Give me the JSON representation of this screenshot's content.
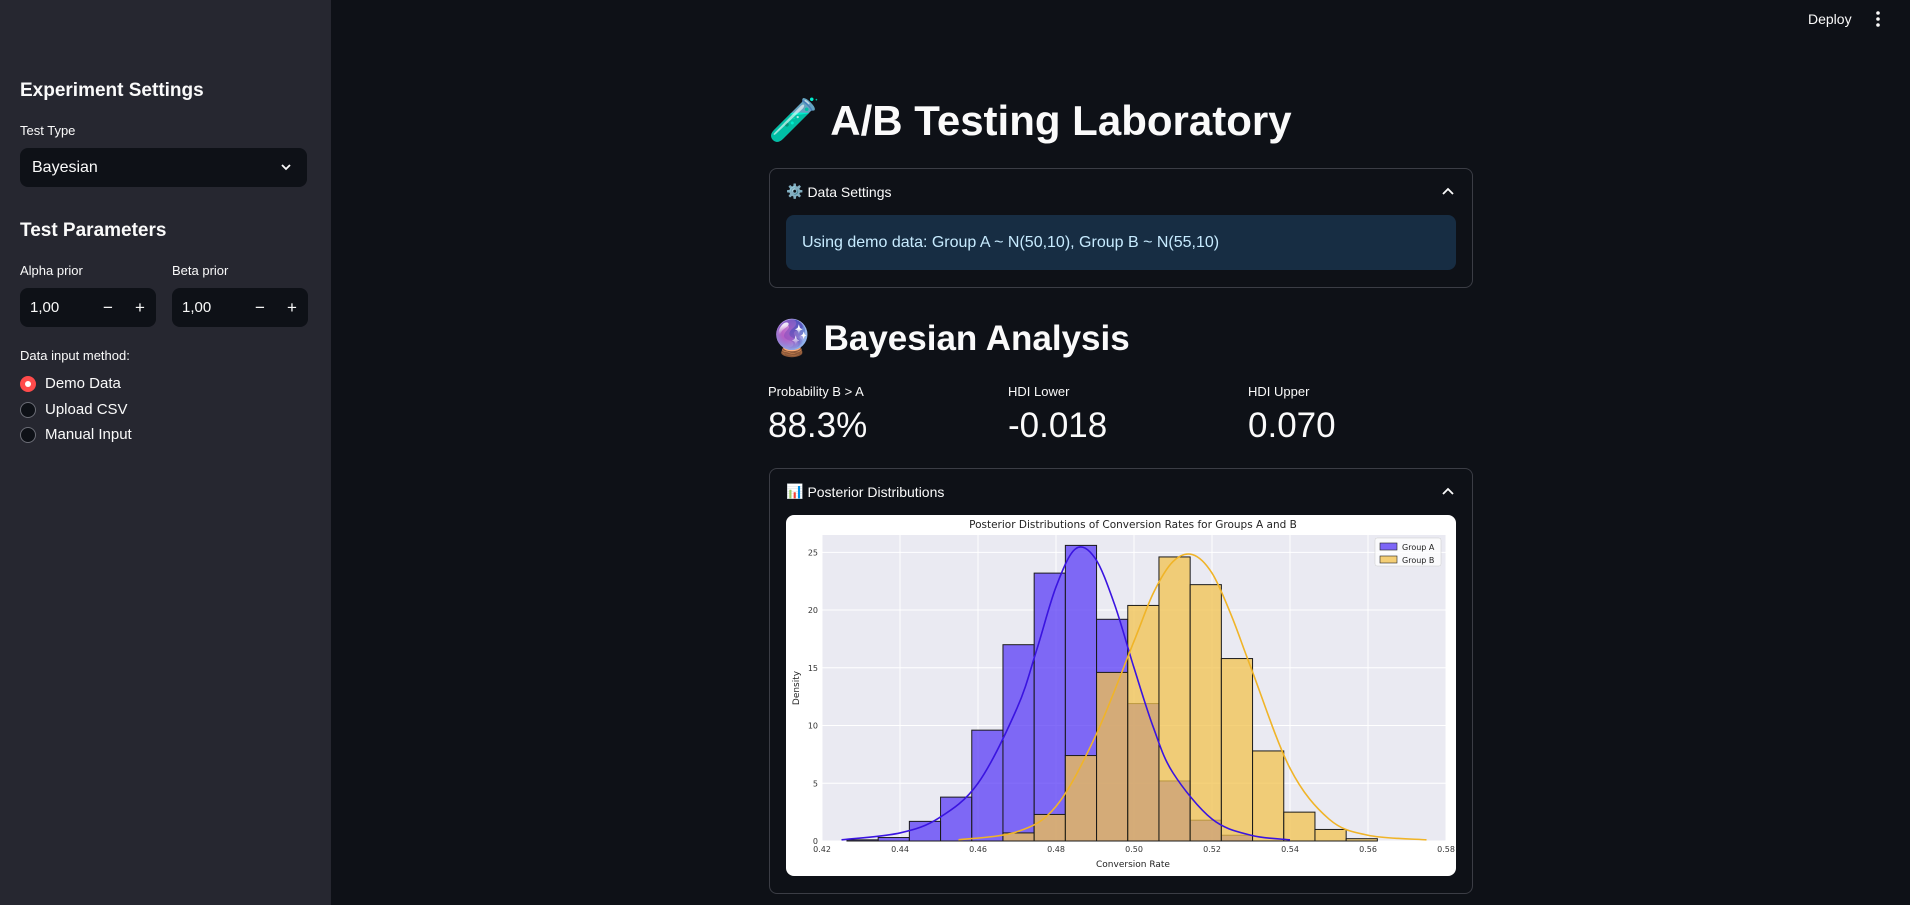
{
  "header": {
    "deploy_label": "Deploy"
  },
  "sidebar": {
    "experiment_title": "Experiment Settings",
    "test_type_label": "Test Type",
    "test_type_value": "Bayesian",
    "parameters_title": "Test Parameters",
    "alpha_label": "Alpha prior",
    "alpha_value": "1,00",
    "beta_label": "Beta prior",
    "beta_value": "1,00",
    "input_method_label": "Data input method:",
    "input_methods": [
      {
        "label": "Demo Data",
        "selected": true
      },
      {
        "label": "Upload CSV",
        "selected": false
      },
      {
        "label": "Manual Input",
        "selected": false
      }
    ]
  },
  "main": {
    "title_icon": "🧪",
    "title": "A/B Testing Laboratory",
    "data_settings": {
      "icon": "⚙️",
      "title": "Data Settings",
      "info": "Using demo data: Group A ~ N(50,10), Group B ~ N(55,10)"
    },
    "analysis_icon": "🔮",
    "analysis_title": "Bayesian Analysis",
    "metrics": [
      {
        "label": "Probability B > A",
        "value": "88.3%"
      },
      {
        "label": "HDI Lower",
        "value": "-0.018"
      },
      {
        "label": "HDI Upper",
        "value": "0.070"
      }
    ],
    "posterior": {
      "icon": "📊",
      "title": "Posterior Distributions"
    }
  },
  "colors": {
    "accent": "#ff4b4b",
    "group_a": "#5a3cf5",
    "group_b": "#f2c24e",
    "info_bg": "#172d43"
  },
  "chart_data": {
    "type": "bar",
    "title": "Posterior Distributions of Conversion Rates for Groups A and B",
    "xlabel": "Conversion Rate",
    "ylabel": "Density",
    "xlim": [
      0.42,
      0.58
    ],
    "ylim": [
      0,
      26.5
    ],
    "xticks": [
      "0.42",
      "0.44",
      "0.46",
      "0.48",
      "0.50",
      "0.52",
      "0.54",
      "0.56",
      "0.58"
    ],
    "yticks": [
      "0",
      "5",
      "10",
      "15",
      "20",
      "25"
    ],
    "grid": true,
    "legend_position": "top-right",
    "bin_width": 0.008,
    "series": [
      {
        "name": "Group A",
        "bins_start": 0.4264,
        "values": [
          0.1,
          0.3,
          1.7,
          3.8,
          9.6,
          17.0,
          23.2,
          25.6,
          19.2,
          11.9,
          5.2,
          1.8,
          0.5
        ],
        "kde_x": [
          0.425,
          0.44,
          0.45,
          0.46,
          0.47,
          0.475,
          0.48,
          0.485,
          0.49,
          0.495,
          0.5,
          0.505,
          0.51,
          0.52,
          0.53,
          0.54
        ],
        "kde_y": [
          0.1,
          0.7,
          2.0,
          5.0,
          11.5,
          16.5,
          22.0,
          25.3,
          24.5,
          20.5,
          15.0,
          9.8,
          5.9,
          1.9,
          0.5,
          0.1
        ]
      },
      {
        "name": "Group B",
        "bins_start": 0.4664,
        "values": [
          0.7,
          2.3,
          7.4,
          14.6,
          20.4,
          24.6,
          22.2,
          15.8,
          7.8,
          2.5,
          1.0,
          0.2
        ],
        "kde_x": [
          0.455,
          0.47,
          0.48,
          0.49,
          0.5,
          0.505,
          0.51,
          0.515,
          0.52,
          0.525,
          0.53,
          0.54,
          0.55,
          0.56,
          0.575
        ],
        "kde_y": [
          0.1,
          0.8,
          3.0,
          9.0,
          17.3,
          21.5,
          24.2,
          24.8,
          23.2,
          19.5,
          15.0,
          6.3,
          1.9,
          0.5,
          0.1
        ]
      }
    ]
  }
}
